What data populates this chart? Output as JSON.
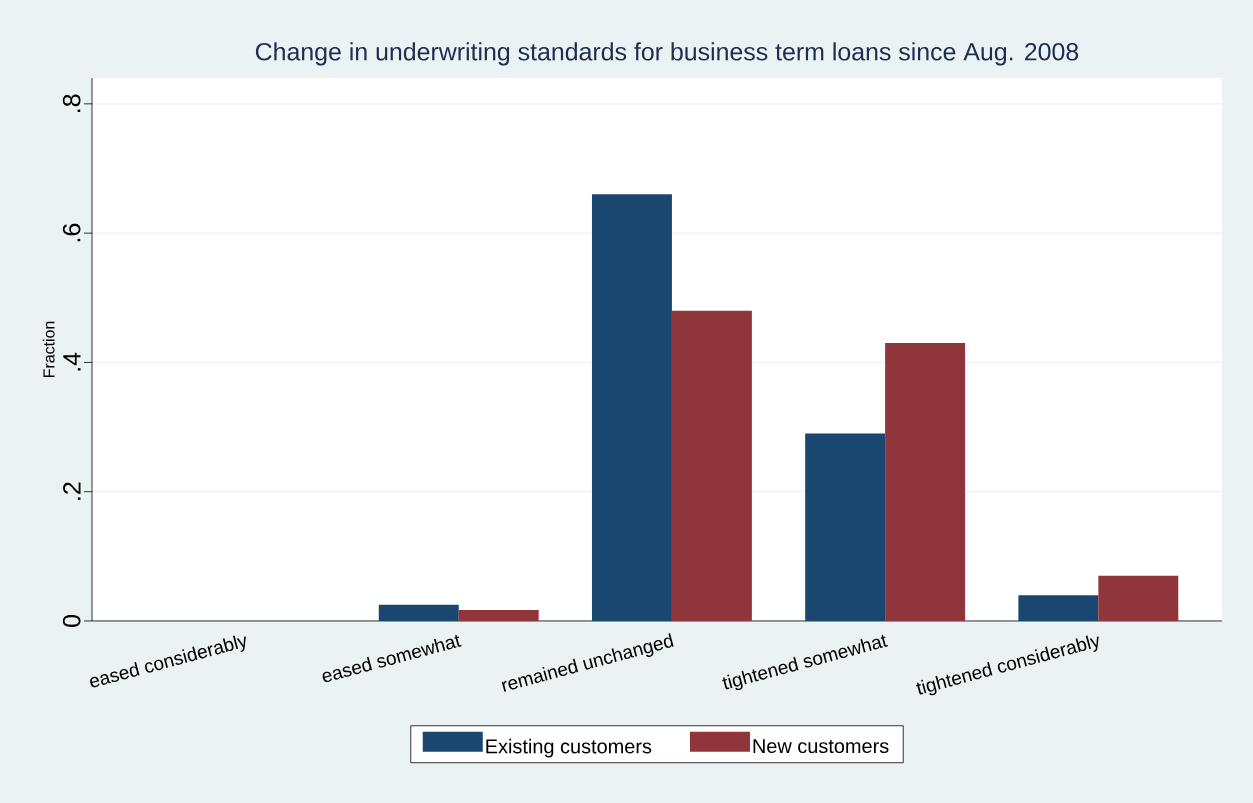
{
  "chart_data": {
    "type": "bar",
    "title": "Change in underwriting standards for business term loans since Aug. 2008",
    "ylabel": "Fraction",
    "categories": [
      "eased considerably",
      "eased somewhat",
      "remained unchanged",
      "tightened somewhat",
      "tightened considerably"
    ],
    "series": [
      {
        "name": "Existing customers",
        "color": "#1a476f",
        "values": [
          0,
          0.025,
          0.66,
          0.29,
          0.04
        ]
      },
      {
        "name": "New customers",
        "color": "#90353b",
        "values": [
          0,
          0.017,
          0.48,
          0.43,
          0.07
        ]
      }
    ],
    "ylim": [
      0,
      0.84
    ],
    "yticks": [
      0,
      {
        "value": 0.2,
        "label": ".2"
      },
      {
        "value": 0.4,
        "label": ".4"
      },
      {
        "value": 0.6,
        "label": ".6"
      },
      {
        "value": 0.8,
        "label": ".8"
      }
    ],
    "grid": "y",
    "legend": "bottom"
  }
}
